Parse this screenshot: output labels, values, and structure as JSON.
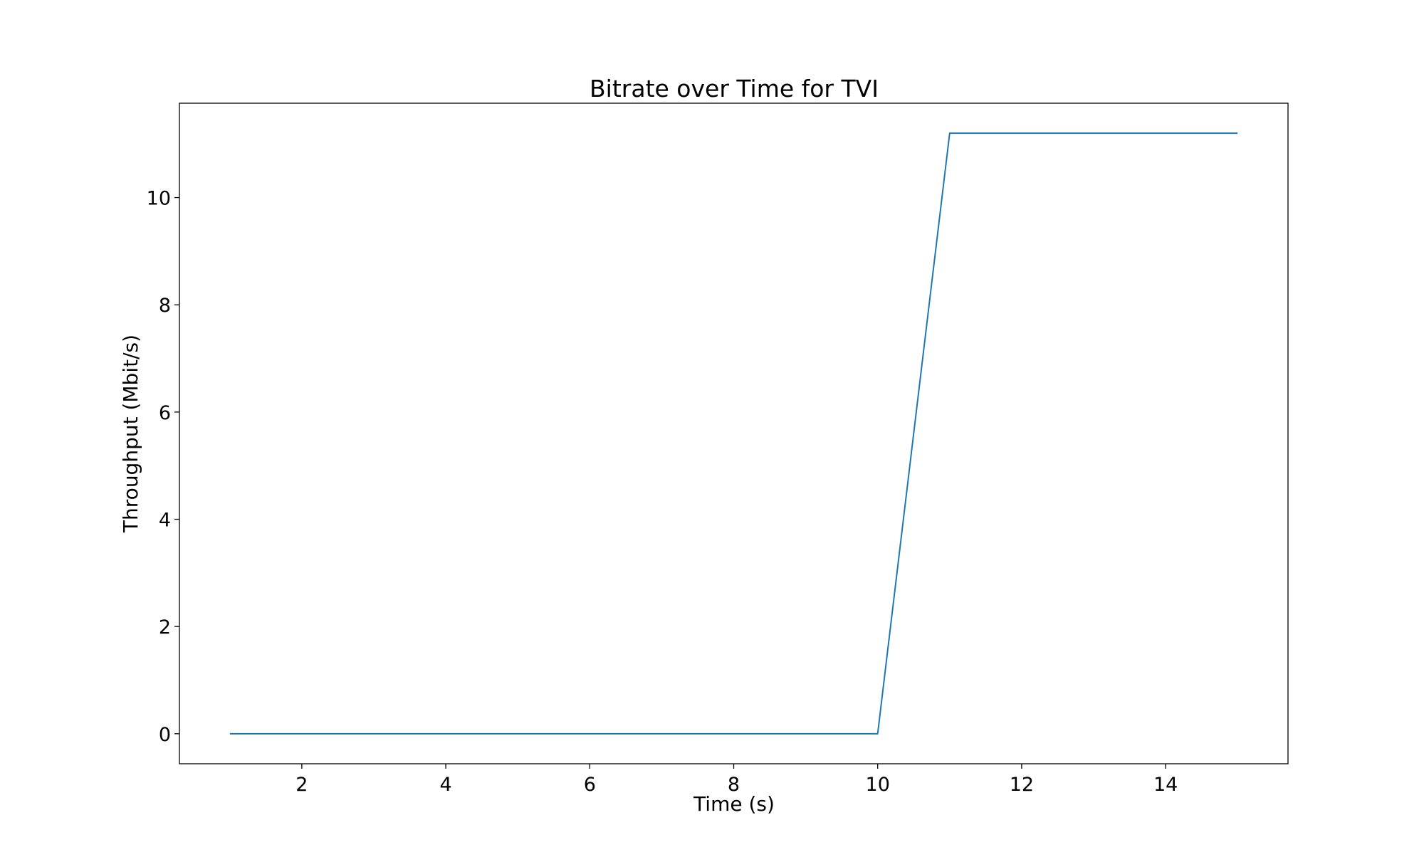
{
  "chart_data": {
    "type": "line",
    "title": "Bitrate over Time for TVI",
    "xlabel": "Time (s)",
    "ylabel": "Throughput (Mbit/s)",
    "xlim": [
      0.3,
      15.7
    ],
    "ylim": [
      -0.56,
      11.76
    ],
    "xticks": [
      2,
      4,
      6,
      8,
      10,
      12,
      14
    ],
    "yticks": [
      0,
      2,
      4,
      6,
      8,
      10
    ],
    "xtick_labels": [
      "2",
      "4",
      "6",
      "8",
      "10",
      "12",
      "14"
    ],
    "ytick_labels": [
      "0",
      "2",
      "4",
      "6",
      "8",
      "10"
    ],
    "grid": false,
    "series": [
      {
        "color": "#1f77b4",
        "x": [
          1,
          2,
          3,
          4,
          5,
          6,
          7,
          8,
          9,
          10,
          11,
          12,
          13,
          14,
          15
        ],
        "y": [
          0,
          0,
          0,
          0,
          0,
          0,
          0,
          0,
          0,
          0,
          11.2,
          11.2,
          11.2,
          11.2,
          11.2
        ]
      }
    ]
  }
}
